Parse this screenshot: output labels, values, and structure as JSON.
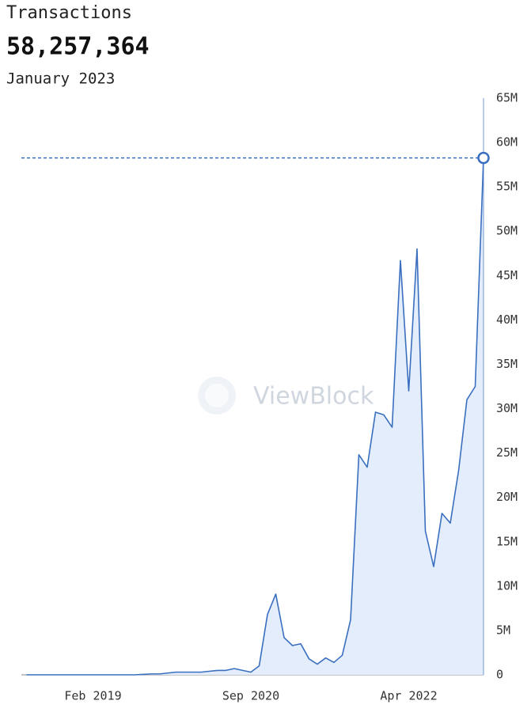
{
  "chart_data": {
    "type": "area",
    "title": "Transactions",
    "highlight": {
      "value_label": "58,257,364",
      "date": "January 2023"
    },
    "watermark": "ViewBlock",
    "x": [
      "Jun 2018",
      "Jul 2018",
      "Aug 2018",
      "Sep 2018",
      "Oct 2018",
      "Nov 2018",
      "Dec 2018",
      "Jan 2019",
      "Feb 2019",
      "Mar 2019",
      "Apr 2019",
      "May 2019",
      "Jun 2019",
      "Jul 2019",
      "Aug 2019",
      "Sep 2019",
      "Oct 2019",
      "Nov 2019",
      "Dec 2019",
      "Jan 2020",
      "Feb 2020",
      "Mar 2020",
      "Apr 2020",
      "May 2020",
      "Jun 2020",
      "Jul 2020",
      "Aug 2020",
      "Sep 2020",
      "Oct 2020",
      "Nov 2020",
      "Dec 2020",
      "Jan 2021",
      "Feb 2021",
      "Mar 2021",
      "Apr 2021",
      "May 2021",
      "Jun 2021",
      "Jul 2021",
      "Aug 2021",
      "Sep 2021",
      "Oct 2021",
      "Nov 2021",
      "Dec 2021",
      "Jan 2022",
      "Feb 2022",
      "Mar 2022",
      "Apr 2022",
      "May 2022",
      "Jun 2022",
      "Jul 2022",
      "Aug 2022",
      "Sep 2022",
      "Oct 2022",
      "Nov 2022",
      "Dec 2022",
      "Jan 2023"
    ],
    "series": [
      {
        "name": "Transactions",
        "color": "#3a6fc0",
        "fill": "#e4edfb",
        "values": [
          0,
          0,
          0,
          0,
          0,
          0,
          0,
          0,
          0,
          0,
          0,
          0,
          0,
          0,
          50000,
          100000,
          100000,
          200000,
          300000,
          300000,
          300000,
          300000,
          400000,
          500000,
          500000,
          700000,
          500000,
          300000,
          1000000,
          6800000,
          9100000,
          4200000,
          3300000,
          3500000,
          1800000,
          1200000,
          1900000,
          1400000,
          2200000,
          6200000,
          24800000,
          23400000,
          29600000,
          29300000,
          27900000,
          46700000,
          32000000,
          48000000,
          16200000,
          12200000,
          18200000,
          17100000,
          23000000,
          31000000,
          32500000,
          58257364
        ]
      }
    ],
    "xticks": [
      "Feb 2019",
      "Sep 2020",
      "Apr 2022"
    ],
    "ylim": [
      0,
      65000000
    ],
    "yticks": [
      {
        "value": 0,
        "label": "0"
      },
      {
        "value": 5000000,
        "label": "5M"
      },
      {
        "value": 10000000,
        "label": "10M"
      },
      {
        "value": 15000000,
        "label": "15M"
      },
      {
        "value": 20000000,
        "label": "20M"
      },
      {
        "value": 25000000,
        "label": "25M"
      },
      {
        "value": 30000000,
        "label": "30M"
      },
      {
        "value": 35000000,
        "label": "35M"
      },
      {
        "value": 40000000,
        "label": "40M"
      },
      {
        "value": 45000000,
        "label": "45M"
      },
      {
        "value": 50000000,
        "label": "50M"
      },
      {
        "value": 55000000,
        "label": "55M"
      },
      {
        "value": 60000000,
        "label": "60M"
      },
      {
        "value": 65000000,
        "label": "65M"
      }
    ]
  }
}
